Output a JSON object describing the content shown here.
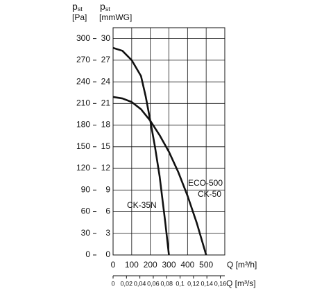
{
  "chart_data": {
    "type": "line",
    "y_title": {
      "main": "p",
      "sub": "st",
      "unit": "[Pa]"
    },
    "y2_title": {
      "main": "p",
      "sub": "st",
      "unit": "[mmWG]"
    },
    "x_title": "Q [m³/h]",
    "x2_title": "Q [m³/s]",
    "xlim": [
      0,
      600
    ],
    "xticks": [
      0,
      100,
      200,
      300,
      400,
      500
    ],
    "x2lim": [
      0,
      0.1667
    ],
    "x2ticks": [
      0,
      {
        "value": 0.02,
        "label": "0,02"
      },
      {
        "value": 0.04,
        "label": "0,04"
      },
      {
        "value": 0.06,
        "label": "0,06"
      },
      {
        "value": 0.08,
        "label": "0,08"
      },
      {
        "value": 0.1,
        "label": "0,1"
      },
      {
        "value": 0.12,
        "label": "0,12"
      },
      {
        "value": 0.14,
        "label": "0,14"
      },
      {
        "value": 0.16,
        "label": "0,16"
      }
    ],
    "ylim": [
      0,
      315
    ],
    "yticks": [
      0,
      30,
      60,
      90,
      120,
      150,
      180,
      210,
      240,
      270,
      300
    ],
    "y2lim": [
      0,
      31.5
    ],
    "y2ticks": [
      0,
      3,
      6,
      9,
      12,
      15,
      18,
      21,
      24,
      27,
      30
    ],
    "grid": true,
    "series": [
      {
        "name": [
          "CK-35N"
        ],
        "color": "#111111",
        "x": [
          0,
          50,
          100,
          150,
          175,
          200,
          225,
          250,
          280,
          300
        ],
        "values": [
          287,
          283,
          270,
          248,
          220,
          186,
          150,
          109,
          46,
          0
        ]
      },
      {
        "name": [
          "ECO-500",
          "CK-50"
        ],
        "color": "#111111",
        "x": [
          0,
          50,
          100,
          150,
          200,
          250,
          300,
          350,
          400,
          450,
          500
        ],
        "values": [
          219,
          217,
          212,
          202,
          186,
          166,
          143,
          115,
          82,
          44,
          0
        ]
      }
    ]
  }
}
